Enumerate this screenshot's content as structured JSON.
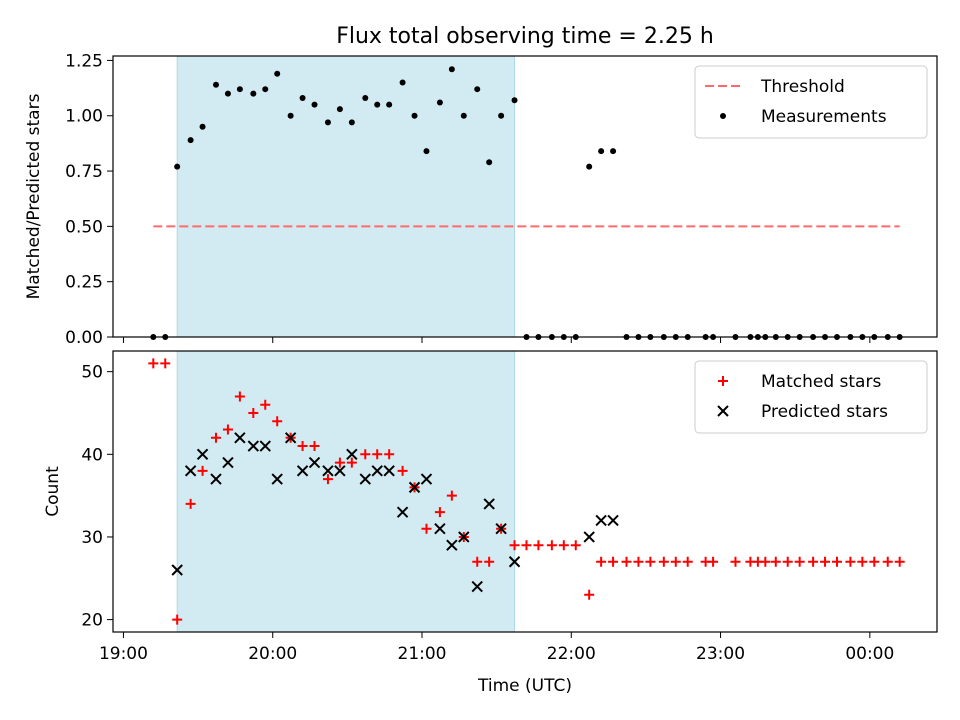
{
  "title": "Flux total observing time = 2.25 h",
  "colors": {
    "span": "#add8e6",
    "threshold": "#ff6b6b",
    "matched": "#ff0000",
    "predicted": "#000000",
    "measurement": "#000000"
  },
  "chart_data": [
    {
      "type": "scatter",
      "ylabel": "Matched/Predicted stars",
      "xlim": [
        18.93,
        24.45
      ],
      "ylim": [
        0,
        1.27
      ],
      "yticks": [
        0,
        0.25,
        0.5,
        0.75,
        1.0,
        1.25
      ],
      "ytick_labels": [
        "0.00",
        "0.25",
        "0.50",
        "0.75",
        "1.00",
        "1.25"
      ],
      "xticks": [
        19,
        20,
        21,
        22,
        23,
        24
      ],
      "shaded_span": [
        19.36,
        21.62
      ],
      "legend_position": "top-right",
      "threshold": {
        "name": "Threshold",
        "value": 0.5,
        "x_range": [
          19.2,
          24.2
        ]
      },
      "series": [
        {
          "name": "Measurements",
          "x": [
            19.2,
            19.28,
            19.36,
            19.45,
            19.53,
            19.62,
            19.7,
            19.78,
            19.87,
            19.95,
            20.03,
            20.12,
            20.2,
            20.28,
            20.37,
            20.45,
            20.53,
            20.62,
            20.7,
            20.78,
            20.87,
            20.95,
            21.03,
            21.12,
            21.2,
            21.28,
            21.37,
            21.45,
            21.53,
            21.62,
            21.7,
            21.78,
            21.87,
            21.95,
            22.03,
            22.12,
            22.2,
            22.28,
            22.37,
            22.45,
            22.53,
            22.62,
            22.7,
            22.78,
            22.9,
            22.95,
            23.1,
            23.2,
            23.25,
            23.3,
            23.37,
            23.45,
            23.53,
            23.62,
            23.7,
            23.78,
            23.87,
            23.95,
            24.03,
            24.12,
            24.2
          ],
          "y": [
            0,
            0,
            0.77,
            0.89,
            0.95,
            1.14,
            1.1,
            1.12,
            1.1,
            1.12,
            1.19,
            1.0,
            1.08,
            1.05,
            0.97,
            1.03,
            0.97,
            1.08,
            1.05,
            1.05,
            1.15,
            1.0,
            0.84,
            1.06,
            1.21,
            1.0,
            1.12,
            0.79,
            1.0,
            1.07,
            0,
            0,
            0,
            0,
            0,
            0.77,
            0.84,
            0.84,
            0,
            0,
            0,
            0,
            0,
            0,
            0,
            0,
            0,
            0,
            0,
            0,
            0,
            0,
            0,
            0,
            0,
            0,
            0,
            0,
            0,
            0,
            0
          ]
        }
      ]
    },
    {
      "type": "scatter",
      "xlabel": "Time (UTC)",
      "ylabel": "Count",
      "xlim": [
        18.93,
        24.45
      ],
      "ylim": [
        18.5,
        52.5
      ],
      "yticks": [
        20,
        30,
        40,
        50
      ],
      "xticks": [
        19,
        20,
        21,
        22,
        23,
        24
      ],
      "xtick_labels": [
        "19:00",
        "20:00",
        "21:00",
        "22:00",
        "23:00",
        "00:00"
      ],
      "shaded_span": [
        19.36,
        21.62
      ],
      "legend_position": "top-right",
      "series": [
        {
          "name": "Matched stars",
          "x": [
            19.2,
            19.28,
            19.36,
            19.45,
            19.53,
            19.62,
            19.7,
            19.78,
            19.87,
            19.95,
            20.03,
            20.12,
            20.2,
            20.28,
            20.37,
            20.45,
            20.53,
            20.62,
            20.7,
            20.78,
            20.87,
            20.95,
            21.03,
            21.12,
            21.2,
            21.28,
            21.37,
            21.45,
            21.53,
            21.62,
            21.7,
            21.78,
            21.87,
            21.95,
            22.03,
            22.12,
            22.2,
            22.28,
            22.37,
            22.45,
            22.53,
            22.62,
            22.7,
            22.78,
            22.9,
            22.95,
            23.1,
            23.2,
            23.25,
            23.3,
            23.37,
            23.45,
            23.53,
            23.62,
            23.7,
            23.78,
            23.87,
            23.95,
            24.03,
            24.12,
            24.2
          ],
          "y": [
            51,
            51,
            20,
            34,
            38,
            42,
            43,
            47,
            45,
            46,
            44,
            42,
            41,
            41,
            37,
            39,
            39,
            40,
            40,
            40,
            38,
            36,
            31,
            33,
            35,
            30,
            27,
            27,
            31,
            29,
            29,
            29,
            29,
            29,
            29,
            23,
            27,
            27,
            27,
            27,
            27,
            27,
            27,
            27,
            27,
            27,
            27,
            27,
            27,
            27,
            27,
            27,
            27,
            27,
            27,
            27,
            27,
            27,
            27,
            27,
            27
          ]
        },
        {
          "name": "Predicted stars",
          "x": [
            19.36,
            19.45,
            19.53,
            19.62,
            19.7,
            19.78,
            19.87,
            19.95,
            20.03,
            20.12,
            20.2,
            20.28,
            20.37,
            20.45,
            20.53,
            20.62,
            20.7,
            20.78,
            20.87,
            20.95,
            21.03,
            21.12,
            21.2,
            21.28,
            21.37,
            21.45,
            21.53,
            21.62,
            22.12,
            22.2,
            22.28
          ],
          "y": [
            26,
            38,
            40,
            37,
            39,
            42,
            41,
            41,
            37,
            42,
            38,
            39,
            38,
            38,
            40,
            37,
            38,
            38,
            33,
            36,
            37,
            31,
            29,
            30,
            24,
            34,
            31,
            27,
            30,
            32,
            32
          ]
        }
      ]
    }
  ]
}
